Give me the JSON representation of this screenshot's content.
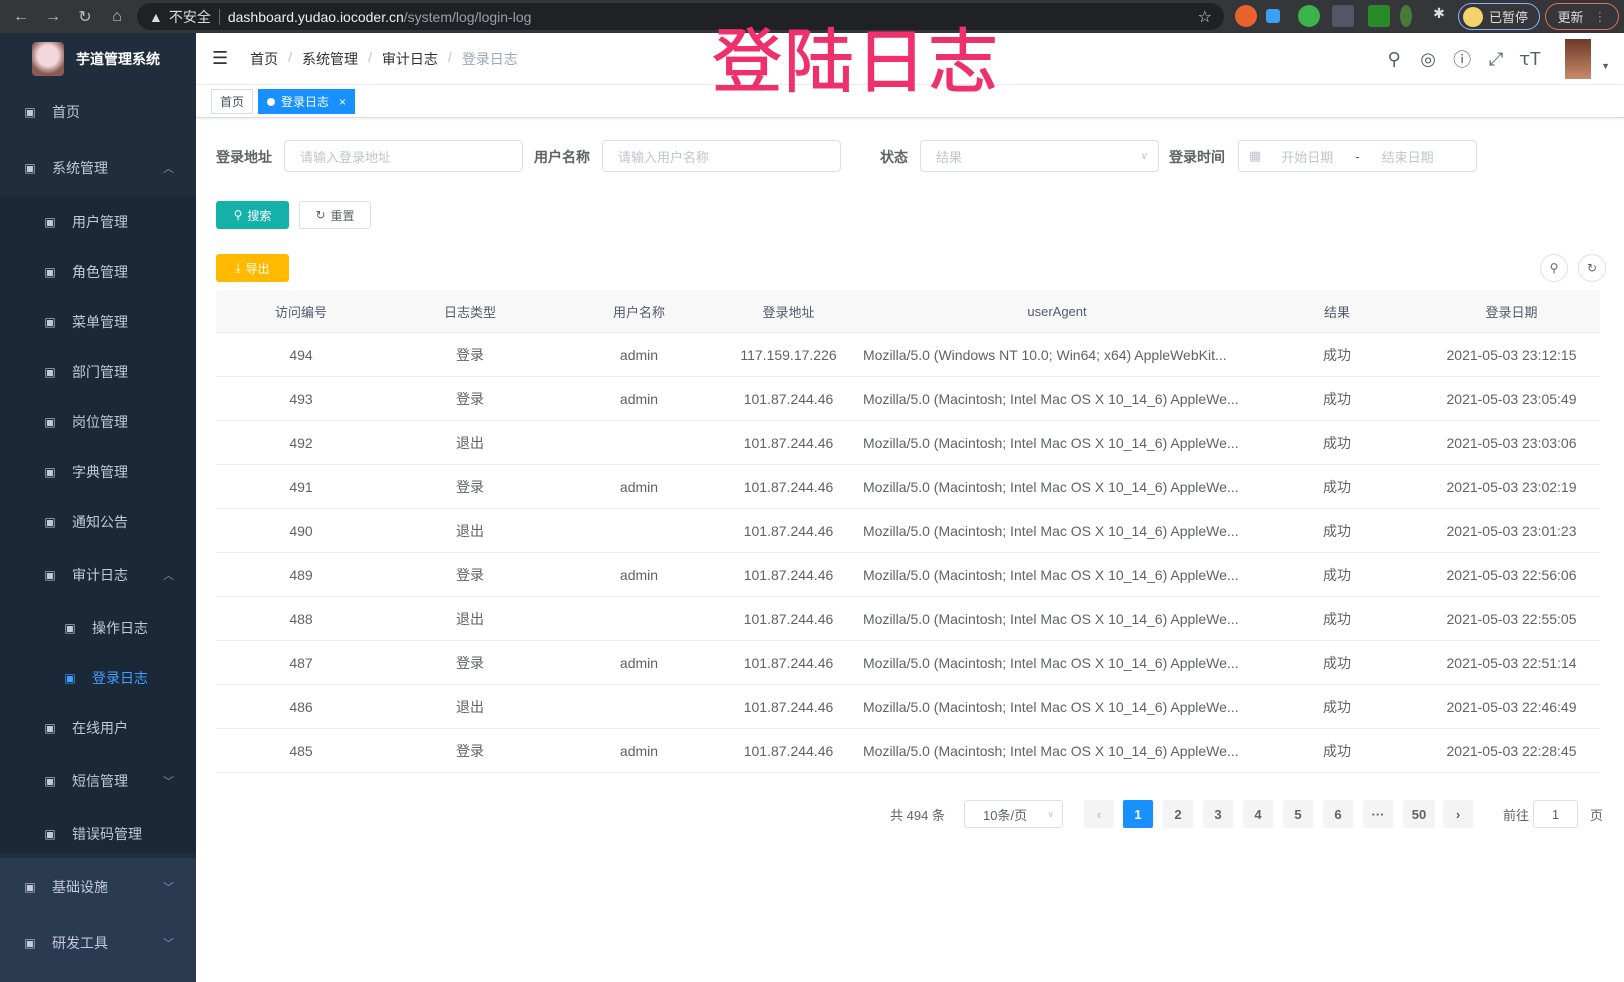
{
  "browser": {
    "insecure": "不安全",
    "host": "dashboard.yudao.iocoder.cn",
    "path": "/system/log/login-log",
    "paused": "已暂停",
    "update": "更新"
  },
  "overlay_title": "登陆日志",
  "sidebar": {
    "title": "芋道管理系统",
    "items": [
      {
        "label": "首页",
        "icon": "dashboard-icon"
      },
      {
        "label": "系统管理",
        "icon": "gear-icon",
        "expanded": true
      },
      {
        "label": "用户管理",
        "icon": "user-icon"
      },
      {
        "label": "角色管理",
        "icon": "peoples-icon"
      },
      {
        "label": "菜单管理",
        "icon": "tree-table-icon"
      },
      {
        "label": "部门管理",
        "icon": "tree-icon"
      },
      {
        "label": "岗位管理",
        "icon": "post-icon"
      },
      {
        "label": "字典管理",
        "icon": "dict-icon"
      },
      {
        "label": "通知公告",
        "icon": "message-icon"
      },
      {
        "label": "审计日志",
        "icon": "log-icon",
        "expanded": true
      },
      {
        "label": "操作日志",
        "icon": "form-icon"
      },
      {
        "label": "登录日志",
        "icon": "logininfor-icon",
        "active": true
      },
      {
        "label": "在线用户",
        "icon": "online-icon"
      },
      {
        "label": "短信管理",
        "icon": "shield-icon"
      },
      {
        "label": "错误码管理",
        "icon": "code-icon"
      },
      {
        "label": "基础设施",
        "icon": "monitor-icon"
      },
      {
        "label": "研发工具",
        "icon": "tool-icon"
      }
    ]
  },
  "breadcrumb": [
    "首页",
    "系统管理",
    "审计日志",
    "登录日志"
  ],
  "tags": [
    {
      "label": "首页"
    },
    {
      "label": "登录日志",
      "close": "×"
    }
  ],
  "filters": {
    "address": {
      "label": "登录地址",
      "placeholder": "请输入登录地址"
    },
    "username": {
      "label": "用户名称",
      "placeholder": "请输入用户名称"
    },
    "status": {
      "label": "状态",
      "placeholder": "结果"
    },
    "time": {
      "label": "登录时间",
      "start": "开始日期",
      "sep": "-",
      "end": "结束日期"
    }
  },
  "buttons": {
    "search": "搜索",
    "reset": "重置",
    "export": "导出"
  },
  "table": {
    "headers": [
      "访问编号",
      "日志类型",
      "用户名称",
      "登录地址",
      "userAgent",
      "结果",
      "登录日期"
    ],
    "rows": [
      [
        "494",
        "登录",
        "admin",
        "117.159.17.226",
        "Mozilla/5.0 (Windows NT 10.0; Win64; x64) AppleWebKit...",
        "成功",
        "2021-05-03 23:12:15"
      ],
      [
        "493",
        "登录",
        "admin",
        "101.87.244.46",
        "Mozilla/5.0 (Macintosh; Intel Mac OS X 10_14_6) AppleWe...",
        "成功",
        "2021-05-03 23:05:49"
      ],
      [
        "492",
        "退出",
        "",
        "101.87.244.46",
        "Mozilla/5.0 (Macintosh; Intel Mac OS X 10_14_6) AppleWe...",
        "成功",
        "2021-05-03 23:03:06"
      ],
      [
        "491",
        "登录",
        "admin",
        "101.87.244.46",
        "Mozilla/5.0 (Macintosh; Intel Mac OS X 10_14_6) AppleWe...",
        "成功",
        "2021-05-03 23:02:19"
      ],
      [
        "490",
        "退出",
        "",
        "101.87.244.46",
        "Mozilla/5.0 (Macintosh; Intel Mac OS X 10_14_6) AppleWe...",
        "成功",
        "2021-05-03 23:01:23"
      ],
      [
        "489",
        "登录",
        "admin",
        "101.87.244.46",
        "Mozilla/5.0 (Macintosh; Intel Mac OS X 10_14_6) AppleWe...",
        "成功",
        "2021-05-03 22:56:06"
      ],
      [
        "488",
        "退出",
        "",
        "101.87.244.46",
        "Mozilla/5.0 (Macintosh; Intel Mac OS X 10_14_6) AppleWe...",
        "成功",
        "2021-05-03 22:55:05"
      ],
      [
        "487",
        "登录",
        "admin",
        "101.87.244.46",
        "Mozilla/5.0 (Macintosh; Intel Mac OS X 10_14_6) AppleWe...",
        "成功",
        "2021-05-03 22:51:14"
      ],
      [
        "486",
        "退出",
        "",
        "101.87.244.46",
        "Mozilla/5.0 (Macintosh; Intel Mac OS X 10_14_6) AppleWe...",
        "成功",
        "2021-05-03 22:46:49"
      ],
      [
        "485",
        "登录",
        "admin",
        "101.87.244.46",
        "Mozilla/5.0 (Macintosh; Intel Mac OS X 10_14_6) AppleWe...",
        "成功",
        "2021-05-03 22:28:45"
      ]
    ]
  },
  "pagination": {
    "total": "共 494 条",
    "page_size": "10条/页",
    "pages": [
      "1",
      "2",
      "3",
      "4",
      "5",
      "6",
      "···",
      "50"
    ],
    "current": "1",
    "goto_label": "前往",
    "goto_value": "1",
    "page_suffix": "页"
  },
  "colors": {
    "sidebar": "#1f2d3d",
    "primary": "#1890ff",
    "search": "#13b1a8",
    "export": "#ffba00",
    "overlay": "#f0306a"
  }
}
